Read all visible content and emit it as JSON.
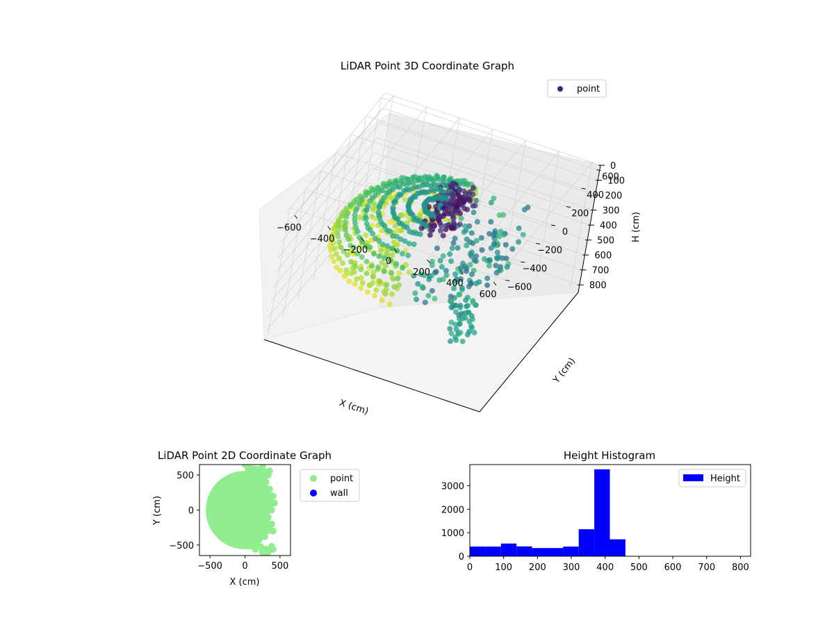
{
  "chart_data": [
    {
      "type": "scatter",
      "projection": "3d",
      "title": "LiDAR Point 3D Coordinate Graph",
      "xlabel": "X (cm)",
      "ylabel": "Y (cm)",
      "zlabel": "H (cm)",
      "x_ticks": [
        "−600",
        "−400",
        "−200",
        "0",
        "200",
        "400",
        "600"
      ],
      "y_ticks": [
        "−600",
        "−400",
        "−200",
        "0",
        "200",
        "400",
        "600"
      ],
      "z_ticks": [
        "0",
        "100",
        "200",
        "300",
        "400",
        "500",
        "600",
        "700",
        "800"
      ],
      "xlim": [
        -650,
        650
      ],
      "ylim": [
        -650,
        650
      ],
      "zlim": [
        0,
        850
      ],
      "z_axis_inverted": true,
      "colormap": "viridis",
      "legend": {
        "label": "point",
        "color": "#46256f",
        "position": "top-right"
      },
      "grid": true
    },
    {
      "type": "scatter",
      "title": "LiDAR Point 2D Coordinate Graph",
      "xlabel": "X (cm)",
      "ylabel": "Y (cm)",
      "x_ticks": [
        "−500",
        "0",
        "500"
      ],
      "y_ticks": [
        "500",
        "0",
        "−500"
      ],
      "xlim": [
        -650,
        650
      ],
      "ylim": [
        -650,
        650
      ],
      "series": [
        {
          "name": "point",
          "color": "#90ee90"
        },
        {
          "name": "wall",
          "color": "#0000ff"
        }
      ],
      "legend_position": "outside-right"
    },
    {
      "type": "bar",
      "subtype": "histogram",
      "title": "Height Histogram",
      "x_ticks": [
        "0",
        "100",
        "200",
        "300",
        "400",
        "500",
        "600",
        "700",
        "800"
      ],
      "y_ticks": [
        "0",
        "1000",
        "2000",
        "3000"
      ],
      "xlim": [
        0,
        830
      ],
      "ylim": [
        0,
        3900
      ],
      "bin_edges": [
        0,
        46,
        92,
        138,
        184,
        230,
        276,
        322,
        368,
        414,
        460,
        506,
        552,
        598,
        644,
        690,
        736,
        782,
        828
      ],
      "counts": [
        410,
        410,
        540,
        420,
        350,
        350,
        410,
        1150,
        3700,
        720,
        0,
        0,
        0,
        0,
        0,
        0,
        0,
        0
      ],
      "series": [
        {
          "name": "Height",
          "color": "#0000ff"
        }
      ],
      "legend_position": "top-right"
    }
  ]
}
